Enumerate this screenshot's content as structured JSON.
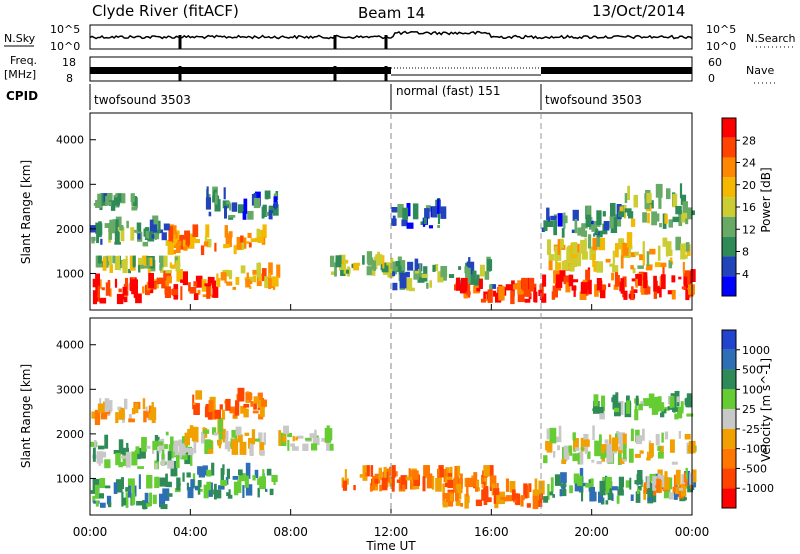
{
  "header": {
    "station": "Clyde River (fitACF)",
    "beam": "Beam 14",
    "date": "13/Oct/2014"
  },
  "strip": {
    "nsky_label": "N.Sky",
    "nsky_top": "10^5",
    "nsky_bottom": "10^0",
    "nsearch_label": "N.Search",
    "nsearch_top": "10^5",
    "nsearch_bottom": "10^0",
    "freq_label": "Freq.",
    "freq_unit": "[MHz]",
    "freq_top": "18",
    "freq_bottom": "8",
    "nave_label": "Nave",
    "nave_top": "60",
    "nave_bottom": "0",
    "cpid_label": "CPID",
    "modes": [
      {
        "name": "twofsound 3503",
        "start": 0
      },
      {
        "name": "normal (fast) 151",
        "start": 12
      },
      {
        "name": "twofsound 3503",
        "start": 18
      }
    ]
  },
  "colors": {
    "power_scale": [
      "#0000ff",
      "#2244bb",
      "#2e8b57",
      "#66aa66",
      "#cccc33",
      "#f5b800",
      "#ff8800",
      "#ff4400",
      "#ff0000"
    ],
    "velocity_scale": [
      "#2244cc",
      "#2e6eb5",
      "#2e8b57",
      "#66cc33",
      "#c8c8c8",
      "#f0a000",
      "#ff7700",
      "#ff4400",
      "#ff0000"
    ]
  },
  "chart_data": [
    {
      "type": "heatmap",
      "panel": "power",
      "ylabel": "Slant Range [km]",
      "yticks": [
        1000,
        2000,
        3000,
        4000
      ],
      "ylim": [
        180,
        4600
      ],
      "xlim": [
        0,
        24
      ],
      "colorbar_label": "Power [dB]",
      "colorbar_ticks": [
        "4",
        "8",
        "12",
        "16",
        "20",
        "24",
        "28"
      ],
      "colorbar_range": [
        0,
        32
      ],
      "blobs": [
        {
          "t0": 0.0,
          "t1": 2.0,
          "r0": 300,
          "r1": 1000,
          "v": 28
        },
        {
          "t0": 2.0,
          "t1": 5.0,
          "r0": 400,
          "r1": 1100,
          "v": 26
        },
        {
          "t0": 5.0,
          "t1": 7.5,
          "r0": 600,
          "r1": 1300,
          "v": 20
        },
        {
          "t0": 0.2,
          "t1": 3.5,
          "r0": 1000,
          "r1": 1400,
          "v": 14
        },
        {
          "t0": 3.0,
          "t1": 7.0,
          "r0": 1400,
          "r1": 2100,
          "v": 22
        },
        {
          "t0": 0.0,
          "t1": 3.0,
          "r0": 1600,
          "r1": 2300,
          "v": 10
        },
        {
          "t0": 4.5,
          "t1": 7.5,
          "r0": 2200,
          "r1": 3000,
          "v": 8
        },
        {
          "t0": 0.0,
          "t1": 2.0,
          "r0": 2400,
          "r1": 2800,
          "v": 10
        },
        {
          "t0": 9.5,
          "t1": 12.0,
          "r0": 900,
          "r1": 1500,
          "v": 14
        },
        {
          "t0": 12.0,
          "t1": 16.0,
          "r0": 600,
          "r1": 1400,
          "v": 10
        },
        {
          "t0": 14.5,
          "t1": 18.0,
          "r0": 300,
          "r1": 900,
          "v": 28
        },
        {
          "t0": 18.0,
          "t1": 24.0,
          "r0": 400,
          "r1": 1200,
          "v": 28
        },
        {
          "t0": 18.0,
          "t1": 24.0,
          "r0": 1000,
          "r1": 2000,
          "v": 18
        },
        {
          "t0": 18.0,
          "t1": 21.0,
          "r0": 1800,
          "r1": 2600,
          "v": 8
        },
        {
          "t0": 21.0,
          "t1": 24.0,
          "r0": 2000,
          "r1": 3200,
          "v": 14
        },
        {
          "t0": 12.0,
          "t1": 14.0,
          "r0": 2000,
          "r1": 2700,
          "v": 6
        }
      ]
    },
    {
      "type": "heatmap",
      "panel": "velocity",
      "ylabel": "Slant Range [km]",
      "yticks": [
        1000,
        2000,
        3000,
        4000
      ],
      "ylim": [
        180,
        4600
      ],
      "xlim": [
        0,
        24
      ],
      "xlabel": "Time UT",
      "xticks": [
        "00:00",
        "04:00",
        "08:00",
        "12:00",
        "16:00",
        "20:00",
        "00:00"
      ],
      "colorbar_label": "Velocity [m s^-1]",
      "colorbar_ticks": [
        "1000",
        "500",
        "100",
        "25",
        "-25",
        "-100",
        "-500",
        "-1000"
      ],
      "blobs": [
        {
          "t0": 0.0,
          "t1": 3.0,
          "r0": 300,
          "r1": 1200,
          "v": 2
        },
        {
          "t0": 3.0,
          "t1": 7.5,
          "r0": 500,
          "r1": 1500,
          "v": 2
        },
        {
          "t0": 0.0,
          "t1": 4.0,
          "r0": 1200,
          "r1": 2200,
          "v": 3
        },
        {
          "t0": 3.0,
          "t1": 7.0,
          "r0": 1500,
          "r1": 2400,
          "v": 4
        },
        {
          "t0": 4.0,
          "t1": 7.0,
          "r0": 2300,
          "r1": 3100,
          "v": 6
        },
        {
          "t0": 0.0,
          "t1": 2.5,
          "r0": 2200,
          "r1": 2800,
          "v": 5
        },
        {
          "t0": 7.5,
          "t1": 9.5,
          "r0": 1600,
          "r1": 2300,
          "v": 4
        },
        {
          "t0": 10.0,
          "t1": 16.0,
          "r0": 700,
          "r1": 1300,
          "v": 6
        },
        {
          "t0": 14.0,
          "t1": 18.0,
          "r0": 300,
          "r1": 1000,
          "v": 6
        },
        {
          "t0": 18.0,
          "t1": 24.0,
          "r0": 400,
          "r1": 1300,
          "v": 2
        },
        {
          "t0": 18.0,
          "t1": 24.0,
          "r0": 1300,
          "r1": 2300,
          "v": 4
        },
        {
          "t0": 20.0,
          "t1": 24.0,
          "r0": 2300,
          "r1": 3000,
          "v": 3
        },
        {
          "t0": 22.0,
          "t1": 24.0,
          "r0": 500,
          "r1": 1200,
          "v": 5
        }
      ]
    }
  ]
}
